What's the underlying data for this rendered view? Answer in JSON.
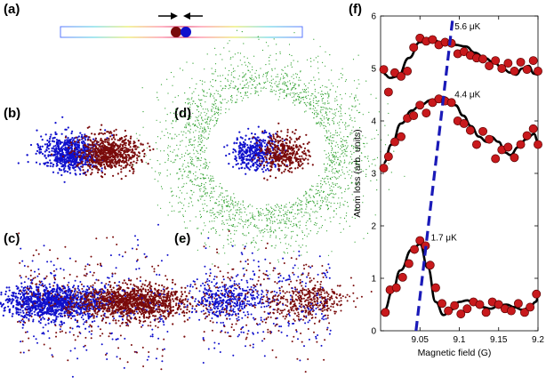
{
  "panels": {
    "a": "(a)",
    "b": "(b)",
    "c": "(c)",
    "d": "(d)",
    "e": "(e)",
    "f": "(f)"
  },
  "colors": {
    "species_1": "#1010cc",
    "species_2": "#7a0b0b",
    "shell": "#2ca02c",
    "fit_line": "#000000",
    "resonance_line": "#1a1ab8",
    "marker_fill": "#c8191c"
  },
  "chart_data": {
    "type": "scatter",
    "xlabel": "Magnetic field (G)",
    "ylabel": "Atom loss (arb. units)",
    "xlim": [
      9.0,
      9.2
    ],
    "ylim": [
      0,
      6
    ],
    "x_ticks": [
      "9.05",
      "9.1",
      "9.15",
      "9.2"
    ],
    "x_tick_values": [
      9.05,
      9.1,
      9.15,
      9.2
    ],
    "y_ticks": [
      "0",
      "1",
      "2",
      "3",
      "4",
      "5",
      "6"
    ],
    "y_tick_values": [
      0,
      1,
      2,
      3,
      4,
      5,
      6
    ],
    "series": [
      {
        "name": "1.7 μK",
        "label": "1.7 μK",
        "label_at": [
          9.064,
          1.72
        ],
        "x": [
          9.006,
          9.012,
          9.02,
          9.028,
          9.036,
          9.043,
          9.05,
          9.057,
          9.063,
          9.07,
          9.078,
          9.086,
          9.094,
          9.102,
          9.11,
          9.118,
          9.126,
          9.134,
          9.142,
          9.15,
          9.158,
          9.166,
          9.175,
          9.183,
          9.19,
          9.198
        ],
        "y": [
          0.35,
          0.78,
          0.82,
          1.02,
          1.28,
          1.55,
          1.72,
          1.62,
          1.25,
          0.82,
          0.52,
          0.38,
          0.48,
          0.32,
          0.42,
          0.55,
          0.5,
          0.35,
          0.55,
          0.5,
          0.42,
          0.38,
          0.52,
          0.35,
          0.45,
          0.7
        ],
        "fit_y": [
          0.4,
          0.75,
          1.15,
          1.55,
          1.65,
          1.2,
          0.55,
          0.3,
          0.4,
          0.55,
          0.58,
          0.5,
          0.45,
          0.42,
          0.48,
          0.5,
          0.45,
          0.4,
          0.45,
          0.55,
          0.62
        ],
        "fit_x": [
          9.005,
          9.015,
          9.025,
          9.04,
          9.05,
          9.06,
          9.07,
          9.08,
          9.09,
          9.1,
          9.11,
          9.12,
          9.13,
          9.14,
          9.15,
          9.16,
          9.17,
          9.18,
          9.19,
          9.197,
          9.2
        ]
      },
      {
        "name": "4.4 μK",
        "label": "4.4 μK",
        "label_at": [
          9.094,
          4.45
        ],
        "x": [
          9.004,
          9.01,
          9.018,
          9.026,
          9.034,
          9.042,
          9.05,
          9.058,
          9.066,
          9.074,
          9.082,
          9.09,
          9.098,
          9.106,
          9.114,
          9.122,
          9.13,
          9.138,
          9.146,
          9.154,
          9.162,
          9.17,
          9.178,
          9.186,
          9.194,
          9.2
        ],
        "y": [
          3.1,
          3.32,
          3.6,
          3.7,
          4.05,
          4.1,
          4.3,
          4.15,
          4.35,
          4.42,
          4.38,
          4.35,
          4.0,
          3.95,
          3.82,
          3.55,
          3.8,
          3.65,
          3.28,
          3.45,
          3.5,
          3.3,
          3.55,
          3.72,
          3.85,
          3.55
        ],
        "fit_y": [
          3.2,
          3.55,
          3.95,
          4.2,
          4.3,
          4.4,
          4.45,
          4.3,
          4.1,
          3.9,
          3.7,
          3.6,
          3.7,
          3.6,
          3.4,
          3.35,
          3.5,
          3.65,
          3.75,
          3.6
        ],
        "fit_x": [
          9.004,
          9.014,
          9.026,
          9.04,
          9.05,
          9.065,
          9.08,
          9.095,
          9.105,
          9.115,
          9.125,
          9.135,
          9.14,
          9.15,
          9.158,
          9.165,
          9.175,
          9.185,
          9.195,
          9.2
        ]
      },
      {
        "name": "5.6 μK",
        "label": "5.6 μK",
        "label_at": [
          9.094,
          5.75
        ],
        "x": [
          9.004,
          9.01,
          9.018,
          9.026,
          9.034,
          9.042,
          9.05,
          9.058,
          9.066,
          9.074,
          9.082,
          9.09,
          9.098,
          9.106,
          9.114,
          9.122,
          9.13,
          9.138,
          9.146,
          9.154,
          9.162,
          9.17,
          9.178,
          9.186,
          9.194,
          9.2
        ],
        "y": [
          4.98,
          4.55,
          4.92,
          4.85,
          4.95,
          5.4,
          5.58,
          5.52,
          5.55,
          5.45,
          5.5,
          5.48,
          5.28,
          5.32,
          5.25,
          5.2,
          5.18,
          5.05,
          5.15,
          5.0,
          5.1,
          4.95,
          5.12,
          4.98,
          5.15,
          4.95
        ],
        "fit_y": [
          4.9,
          4.82,
          4.85,
          5.2,
          5.5,
          5.55,
          5.48,
          5.45,
          5.42,
          5.3,
          5.2,
          5.1,
          5.0,
          4.92,
          4.88,
          5.0,
          5.05,
          4.9,
          4.88
        ],
        "fit_x": [
          9.004,
          9.012,
          9.022,
          9.036,
          9.05,
          9.065,
          9.08,
          9.095,
          9.108,
          9.12,
          9.132,
          9.145,
          9.155,
          9.165,
          9.172,
          9.18,
          9.188,
          9.195,
          9.2
        ]
      }
    ],
    "resonance_line": {
      "x_start": 9.045,
      "y_start": 0.0,
      "x_end": 9.092,
      "y_end": 6.0
    }
  },
  "figure_parts": {
    "lattice": {
      "description_label": ""
    },
    "arrows": [
      "right-arrow",
      "left-arrow"
    ]
  }
}
